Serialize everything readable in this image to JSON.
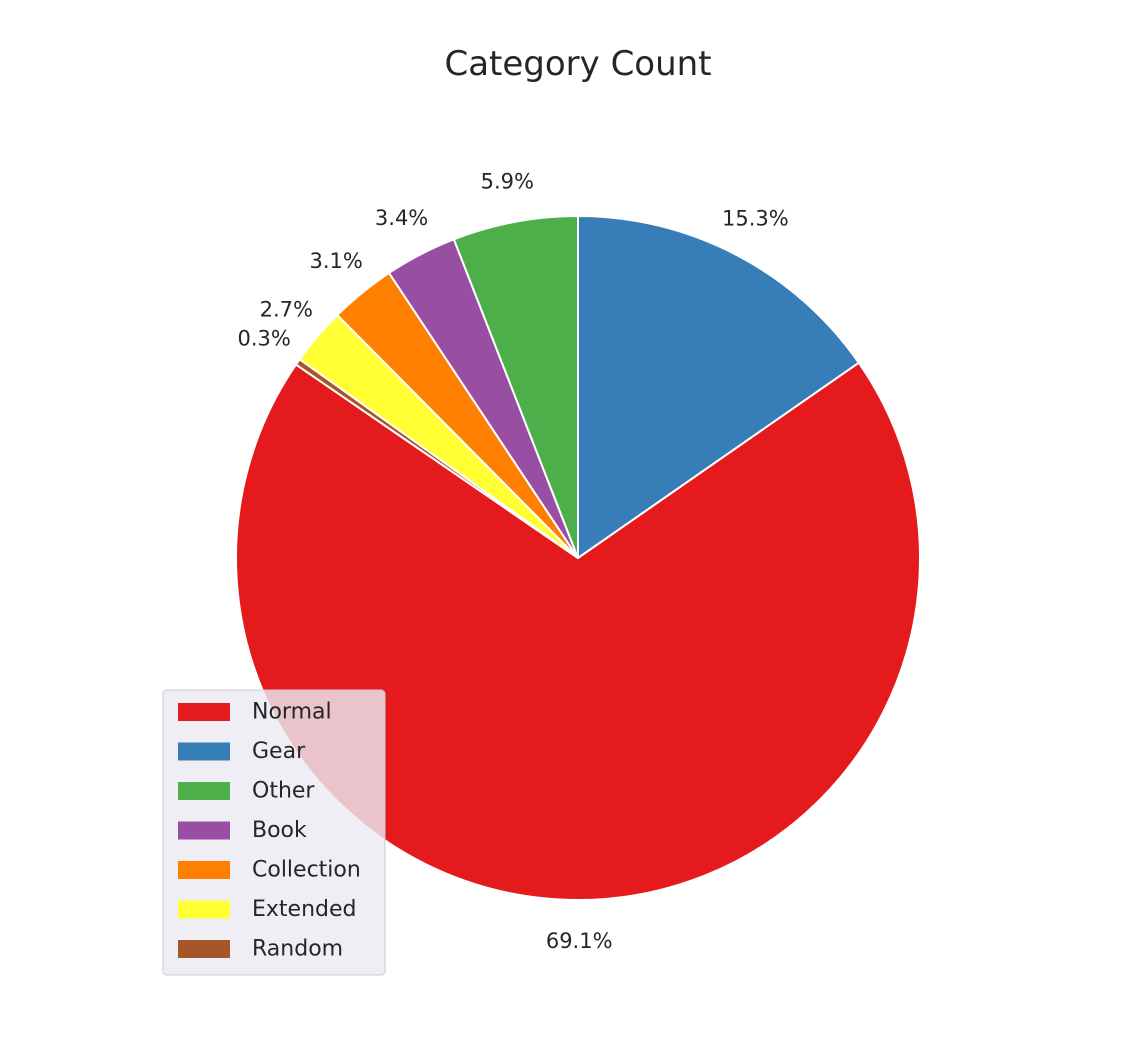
{
  "chart_data": {
    "type": "pie",
    "title": "Category Count",
    "legend_position": "lower-left",
    "start_angle_deg": 90,
    "direction": "clockwise",
    "slices": [
      {
        "label": "Gear",
        "value": 15.3,
        "pct_label": "15.3%",
        "color": "#377eb8"
      },
      {
        "label": "Normal",
        "value": 69.1,
        "pct_label": "69.1%",
        "color": "#e41a1c"
      },
      {
        "label": "Random",
        "value": 0.3,
        "pct_label": "0.3%",
        "color": "#a65628"
      },
      {
        "label": "Extended",
        "value": 2.7,
        "pct_label": "2.7%",
        "color": "#ffff33"
      },
      {
        "label": "Collection",
        "value": 3.1,
        "pct_label": "3.1%",
        "color": "#ff7f00"
      },
      {
        "label": "Book",
        "value": 3.4,
        "pct_label": "3.4%",
        "color": "#984ea3"
      },
      {
        "label": "Other",
        "value": 5.9,
        "pct_label": "5.9%",
        "color": "#4daf4a"
      }
    ],
    "legend": [
      {
        "label": "Normal",
        "color": "#e41a1c"
      },
      {
        "label": "Gear",
        "color": "#377eb8"
      },
      {
        "label": "Other",
        "color": "#4daf4a"
      },
      {
        "label": "Book",
        "color": "#984ea3"
      },
      {
        "label": "Collection",
        "color": "#ff7f00"
      },
      {
        "label": "Extended",
        "color": "#ffff33"
      },
      {
        "label": "Random",
        "color": "#a65628"
      }
    ]
  }
}
